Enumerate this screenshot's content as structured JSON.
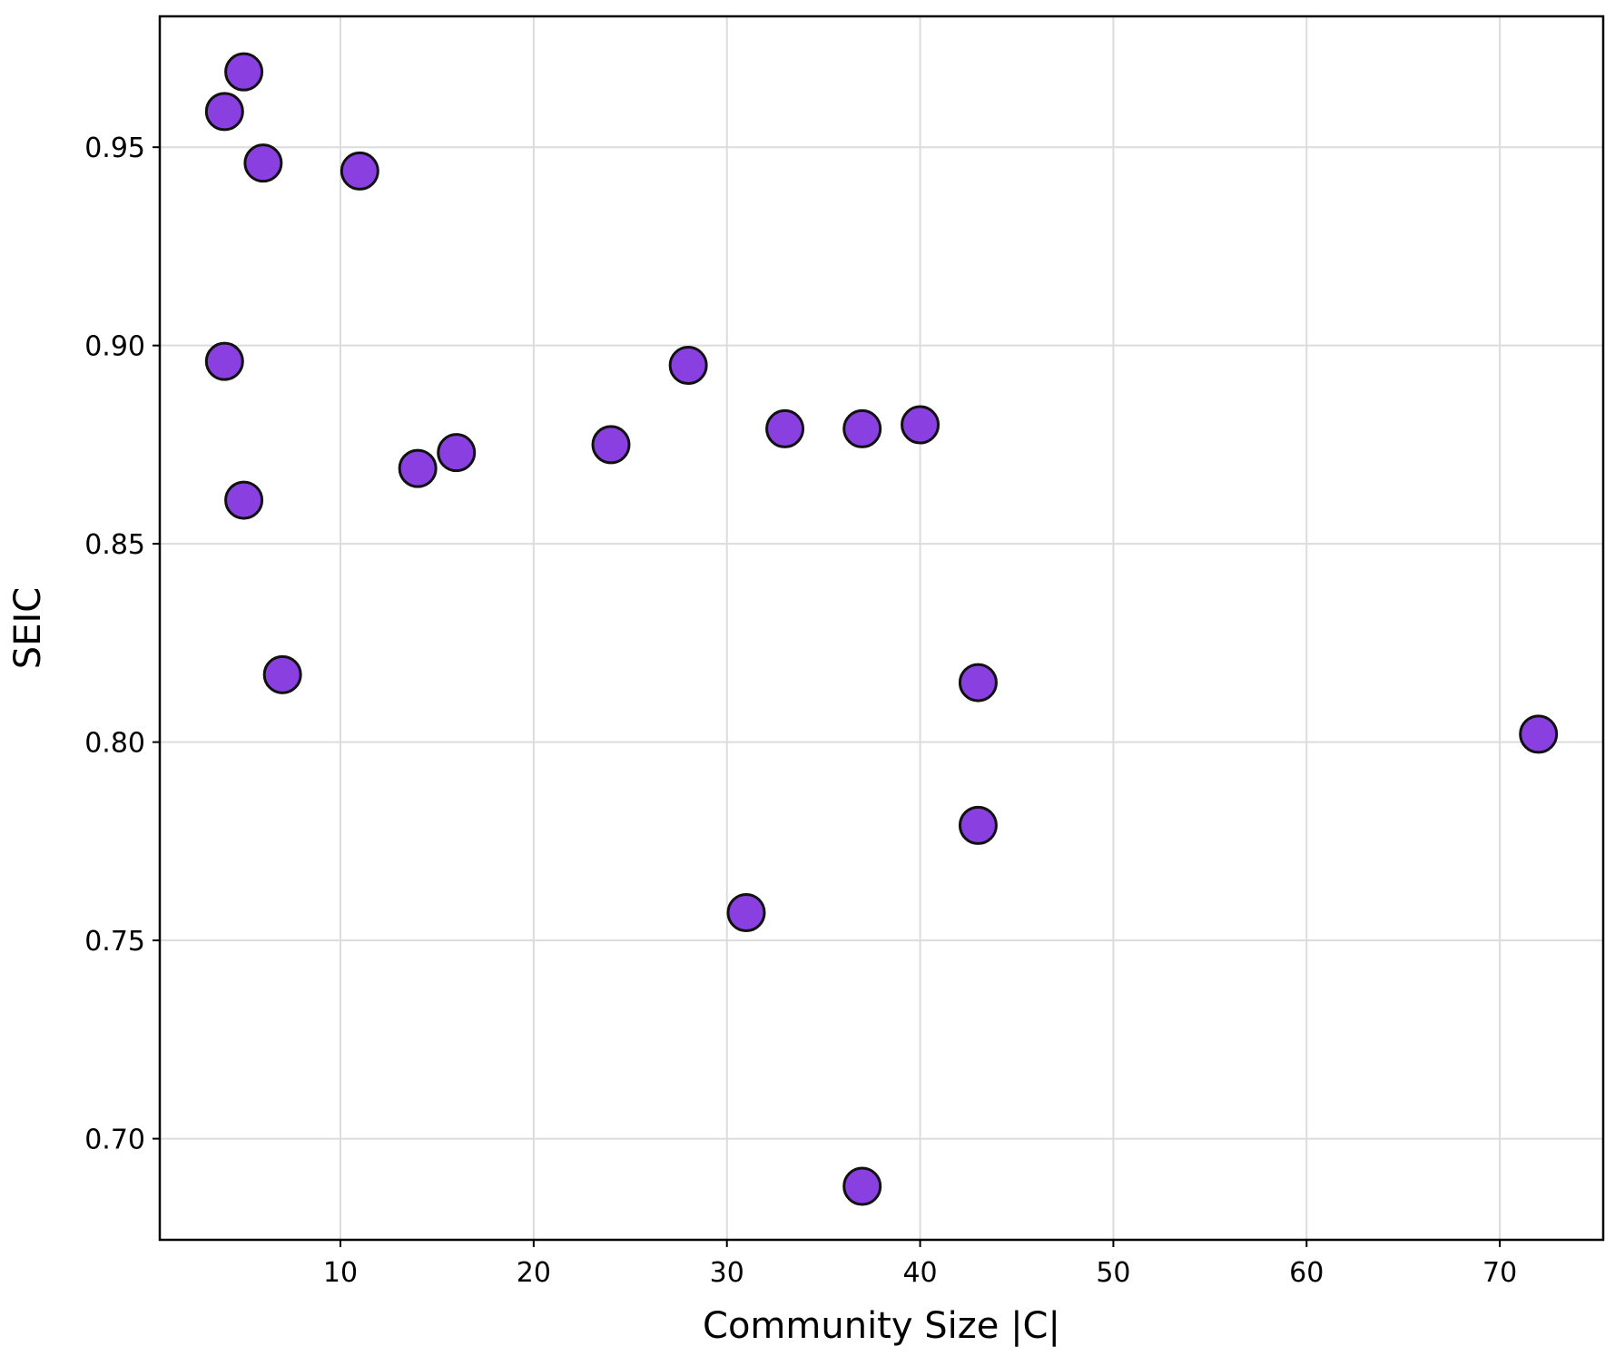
{
  "chart_data": {
    "type": "scatter",
    "title": "",
    "xlabel": "Community Size |C|",
    "ylabel": "SEIC",
    "xlim": [
      0.65,
      75.35
    ],
    "ylim": [
      0.6745,
      0.983
    ],
    "xticks": [
      10,
      20,
      30,
      40,
      50,
      60,
      70
    ],
    "yticks": [
      0.7,
      0.75,
      0.8,
      0.85,
      0.9,
      0.95
    ],
    "grid": true,
    "marker_color": "#8a3fe0",
    "marker_edge": "#111111",
    "points": [
      {
        "x": 4,
        "y": 0.959
      },
      {
        "x": 5,
        "y": 0.969
      },
      {
        "x": 6,
        "y": 0.946
      },
      {
        "x": 11,
        "y": 0.944
      },
      {
        "x": 4,
        "y": 0.896
      },
      {
        "x": 5,
        "y": 0.861
      },
      {
        "x": 7,
        "y": 0.817
      },
      {
        "x": 14,
        "y": 0.869
      },
      {
        "x": 16,
        "y": 0.873
      },
      {
        "x": 24,
        "y": 0.875
      },
      {
        "x": 28,
        "y": 0.895
      },
      {
        "x": 31,
        "y": 0.757
      },
      {
        "x": 33,
        "y": 0.879
      },
      {
        "x": 37,
        "y": 0.879
      },
      {
        "x": 37,
        "y": 0.688
      },
      {
        "x": 40,
        "y": 0.88
      },
      {
        "x": 43,
        "y": 0.815
      },
      {
        "x": 43,
        "y": 0.779
      },
      {
        "x": 72,
        "y": 0.802
      }
    ]
  }
}
